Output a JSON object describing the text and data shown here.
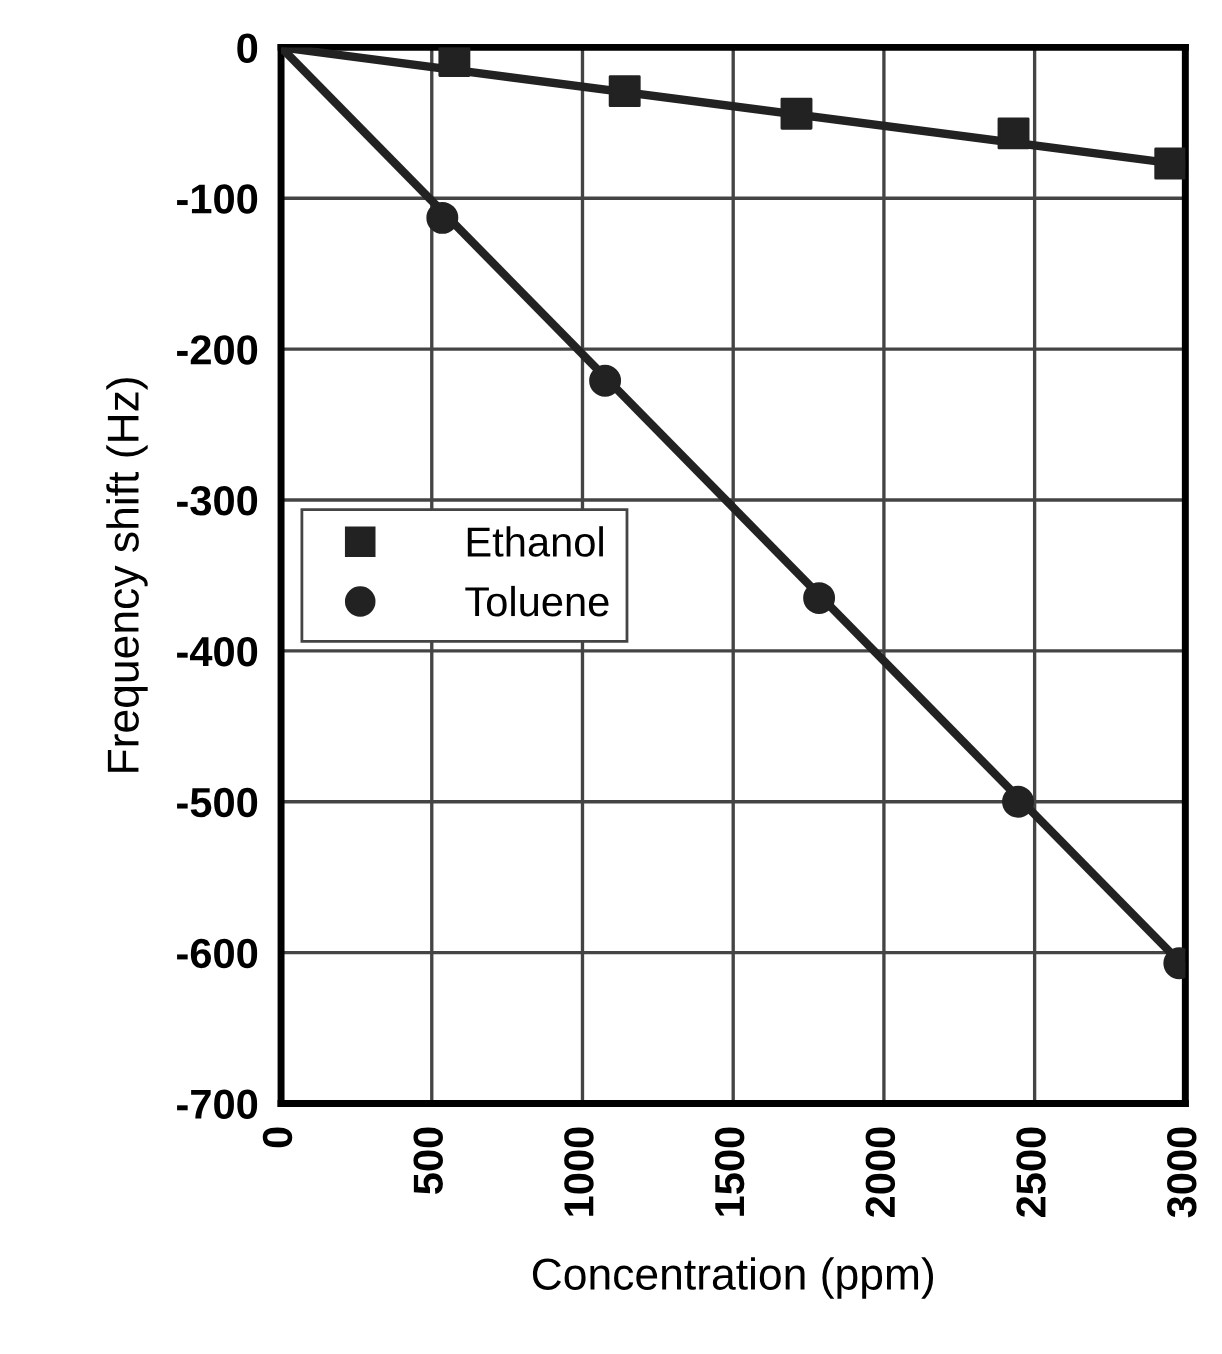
{
  "chart_data": {
    "type": "scatter",
    "xlabel": "Concentration (ppm)",
    "ylabel": "Frequency shift (Hz)",
    "xlim": [
      0,
      3000
    ],
    "ylim": [
      -700,
      0
    ],
    "xticks": [
      0,
      500,
      1000,
      1500,
      2000,
      2500,
      3000
    ],
    "yticks": [
      -700,
      -600,
      -500,
      -400,
      -300,
      -200,
      -100,
      0
    ],
    "grid": true,
    "legend": "center left",
    "series": [
      {
        "name": "Ethanol",
        "color": "#222222",
        "marker": "square",
        "x": [
          575,
          1140,
          1710,
          2430,
          2950
        ],
        "values": [
          -9,
          -29,
          -44,
          -57,
          -77
        ]
      },
      {
        "name": "Toluene",
        "color": "#222222",
        "marker": "circle",
        "x": [
          535,
          1075,
          1785,
          2445,
          2980
        ],
        "values": [
          -113,
          -221,
          -365,
          -500,
          -607
        ]
      },
      {
        "type": "line",
        "color": "#222222",
        "marker": "none",
        "x": [
          0,
          3000
        ],
        "values": [
          0,
          -78
        ]
      },
      {
        "type": "line",
        "color": "#222222",
        "marker": "none",
        "x": [
          0,
          3000
        ],
        "values": [
          0,
          -610
        ]
      }
    ]
  }
}
